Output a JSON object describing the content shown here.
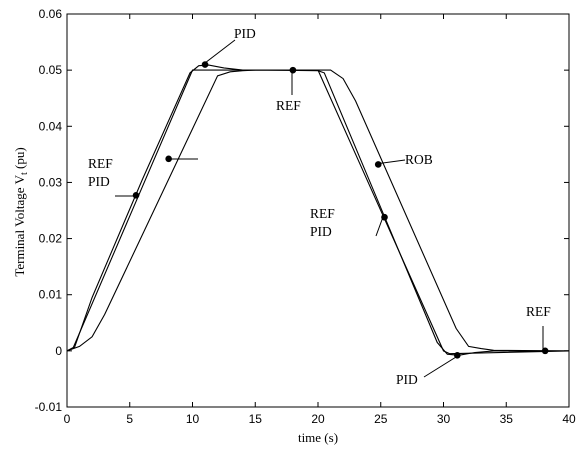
{
  "chart_data": {
    "type": "line",
    "title": "",
    "xlabel": "time (s)",
    "ylabel_main": "Terminal Voltage V",
    "ylabel_sub": "t",
    "ylabel_unit": " (pu)",
    "xlim": [
      0,
      40
    ],
    "ylim": [
      -0.01,
      0.06
    ],
    "xticks": [
      0,
      5,
      10,
      15,
      20,
      25,
      30,
      35,
      40
    ],
    "xtick_labels": [
      "0",
      "5",
      "10",
      "15",
      "20",
      "25",
      "30",
      "35",
      "40"
    ],
    "yticks": [
      -0.01,
      0,
      0.01,
      0.02,
      0.03,
      0.04,
      0.05,
      0.06
    ],
    "ytick_labels": [
      "-0.01",
      "0",
      "0.01",
      "0.02",
      "0.03",
      "0.04",
      "0.05",
      "0.06"
    ],
    "grid": false,
    "series": [
      {
        "name": "REF",
        "x": [
          0,
          0.5,
          10,
          20,
          30,
          30.5,
          40
        ],
        "y": [
          0,
          0.0006,
          0.05,
          0.05,
          0,
          -0.0005,
          0
        ]
      },
      {
        "name": "PID",
        "x": [
          0,
          0.6,
          2,
          6,
          9.8,
          10.5,
          11.3,
          12.5,
          14,
          16,
          20,
          20.5,
          29.5,
          30.3,
          31.2,
          32.5,
          34,
          40
        ],
        "y": [
          0,
          0.0006,
          0.0095,
          0.0305,
          0.0495,
          0.0508,
          0.0509,
          0.0504,
          0.05,
          0.05,
          0.0499,
          0.0495,
          0.0015,
          -0.0006,
          -0.0008,
          -0.0003,
          0,
          0
        ]
      },
      {
        "name": "ROB",
        "x": [
          0,
          1,
          2,
          3,
          12,
          13,
          14,
          15,
          21,
          22,
          23,
          31,
          32,
          33,
          34,
          40
        ],
        "y": [
          0,
          0.0008,
          0.0025,
          0.0065,
          0.049,
          0.0497,
          0.0499,
          0.05,
          0.05,
          0.0485,
          0.0445,
          0.004,
          0.0008,
          0.0004,
          0.0001,
          0
        ]
      }
    ],
    "annotations": [
      {
        "lines": [
          "PID"
        ],
        "point": [
          11,
          0.051
        ]
      },
      {
        "lines": [
          "REF"
        ],
        "point": [
          18,
          0.05
        ]
      },
      {
        "lines": [
          "REF",
          "PID"
        ],
        "point": [
          5.5,
          0.0277
        ]
      },
      {
        "lines": [],
        "point": [
          8.1,
          0.0342
        ]
      },
      {
        "lines": [
          "ROB"
        ],
        "point": [
          24.8,
          0.0332
        ]
      },
      {
        "lines": [
          "REF",
          "PID"
        ],
        "point": [
          25.3,
          0.0238
        ]
      },
      {
        "lines": [
          "PID"
        ],
        "point": [
          31.1,
          -0.0008
        ]
      },
      {
        "lines": [
          "REF"
        ],
        "point": [
          38.1,
          0
        ]
      }
    ]
  }
}
